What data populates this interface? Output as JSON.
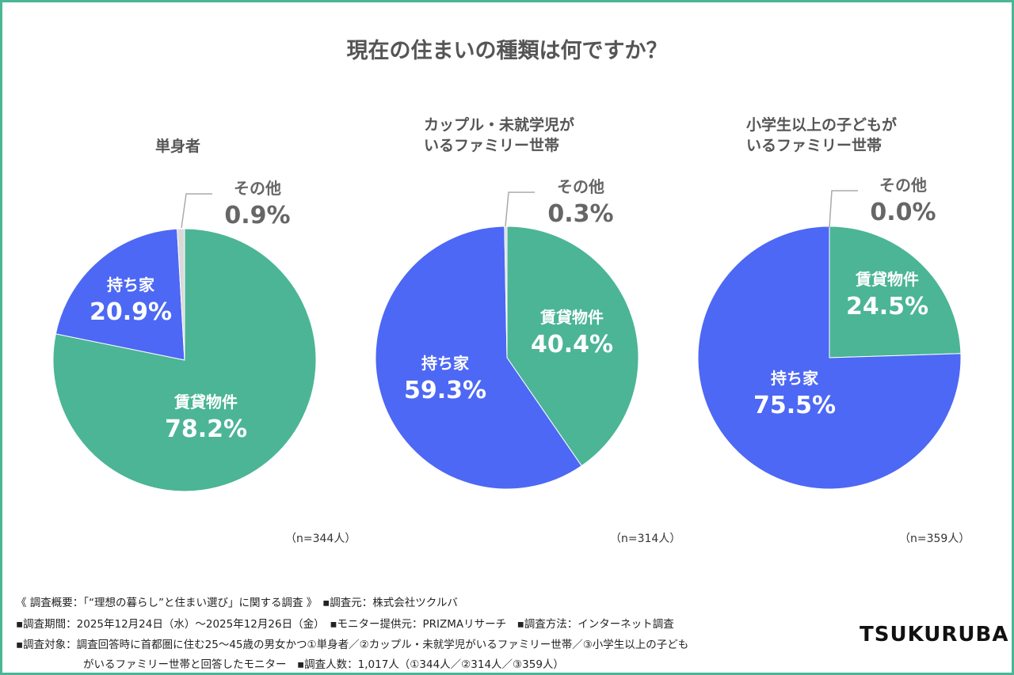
{
  "title": "現在の住まいの種類は何ですか？",
  "colors": {
    "rent": "#4bb595",
    "own": "#4d68f4",
    "other": "#d9d9d9",
    "border": "#4bb595"
  },
  "chart_data": [
    {
      "type": "pie",
      "title": "単身者",
      "n": "（n=344人）",
      "slices": [
        {
          "label": "賃貸物件",
          "value": 78.2,
          "display": "78.2%"
        },
        {
          "label": "持ち家",
          "value": 20.9,
          "display": "20.9%"
        },
        {
          "label": "その他",
          "value": 0.9,
          "display": "0.9%"
        }
      ]
    },
    {
      "type": "pie",
      "title": "カップル・未就学児がいるファミリー世帯",
      "title_lines": [
        "カップル・未就学児が",
        "いるファミリー世帯"
      ],
      "n": "（n=314人）",
      "slices": [
        {
          "label": "賃貸物件",
          "value": 40.4,
          "display": "40.4%"
        },
        {
          "label": "持ち家",
          "value": 59.3,
          "display": "59.3%"
        },
        {
          "label": "その他",
          "value": 0.3,
          "display": "0.3%"
        }
      ]
    },
    {
      "type": "pie",
      "title": "小学生以上の子どもがいるファミリー世帯",
      "title_lines": [
        "小学生以上の子どもが",
        "いるファミリー世帯"
      ],
      "n": "（n=359人）",
      "slices": [
        {
          "label": "賃貸物件",
          "value": 24.5,
          "display": "24.5%"
        },
        {
          "label": "持ち家",
          "value": 75.5,
          "display": "75.5%"
        },
        {
          "label": "その他",
          "value": 0.0,
          "display": "0.0%"
        }
      ]
    }
  ],
  "footer": [
    "《 調査概要：「“理想の暮らし”と住まい選び」に関する調査 》　▪調査元：株式会社ツクルバ",
    "▪調査期間：2025年12月24日（水）～2025年12月26日（金）　▪モニター提供元：PRIZMAリサーチ　▪調査方法：インターネット調査",
    "▪調査対象：調査回答時に首都圏に住む25～45歳の男女かつ①単身者／②カップル・未就学児がいるファミリー世帯／③小学生以上の子ども",
    "がいるファミリー世帯と回答したモニター　▪調査人数：1,017人（①344人／②314人／③359人）"
  ],
  "logo": "TSUKURUBA"
}
